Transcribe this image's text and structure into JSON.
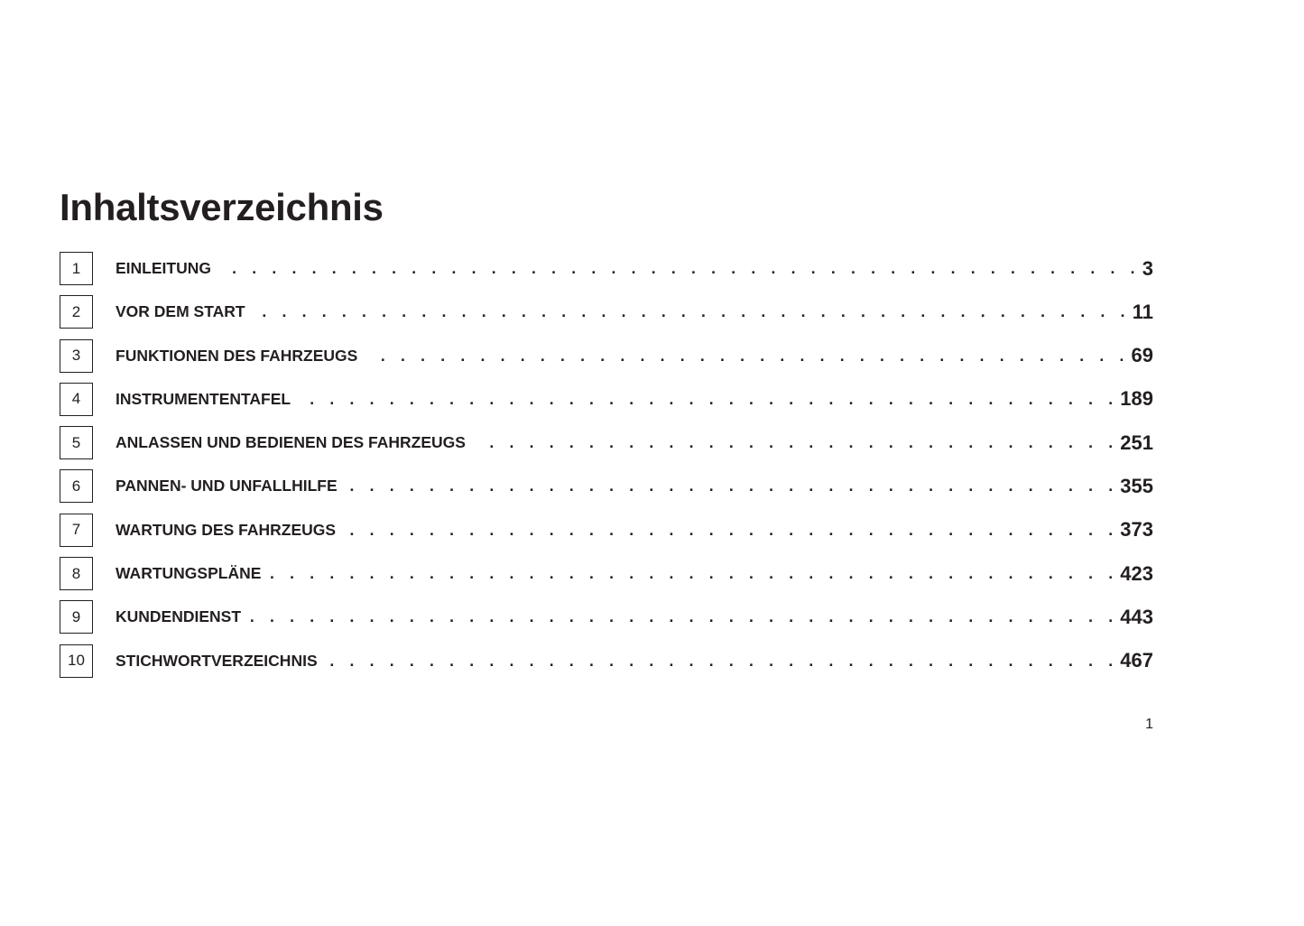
{
  "title": "Inhaltsverzeichnis",
  "entries": [
    {
      "number": "1",
      "label": "EINLEITUNG",
      "page": "3"
    },
    {
      "number": "2",
      "label": "VOR DEM START",
      "page": "11"
    },
    {
      "number": "3",
      "label": "FUNKTIONEN DES FAHRZEUGS",
      "page": "69"
    },
    {
      "number": "4",
      "label": "INSTRUMENTENTAFEL",
      "page": "189"
    },
    {
      "number": "5",
      "label": "ANLASSEN UND BEDIENEN DES FAHRZEUGS",
      "page": "251"
    },
    {
      "number": "6",
      "label": "PANNEN- UND UNFALLHILFE",
      "page": "355"
    },
    {
      "number": "7",
      "label": "WARTUNG DES FAHRZEUGS",
      "page": "373"
    },
    {
      "number": "8",
      "label": "WARTUNGSPLÄNE",
      "page": "423"
    },
    {
      "number": "9",
      "label": "KUNDENDIENST",
      "page": "443"
    },
    {
      "number": "10",
      "label": "STICHWORTVERZEICHNIS",
      "page": "467"
    }
  ],
  "page_number": "1"
}
